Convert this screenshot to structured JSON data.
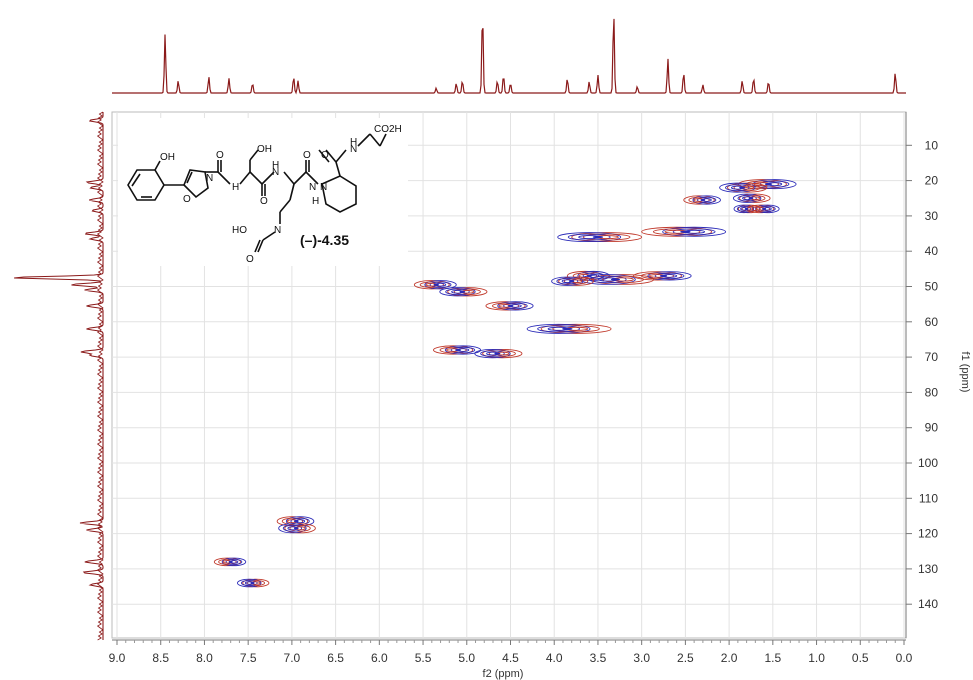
{
  "chart_data": {
    "type": "heatmap",
    "subtype": "2D HSQC NMR spectrum (1H-13C) with projections",
    "xlabel": "f2 (ppm)",
    "ylabel": "f1 (ppm)",
    "xlim": [
      9.0,
      0.0
    ],
    "ylim": [
      0,
      150
    ],
    "x_axis_reversed": true,
    "y_axis_direction": "increasing downward",
    "x_ticks": [
      "9.0",
      "8.5",
      "8.0",
      "7.5",
      "7.0",
      "6.5",
      "6.0",
      "5.5",
      "5.0",
      "4.5",
      "4.0",
      "3.5",
      "3.0",
      "2.5",
      "2.0",
      "1.5",
      "1.0",
      "0.5",
      "0.0"
    ],
    "y_ticks": [
      "10",
      "20",
      "30",
      "40",
      "50",
      "60",
      "70",
      "80",
      "90",
      "100",
      "110",
      "120",
      "130",
      "140"
    ],
    "grid": true,
    "annotation": "(–)-4.35",
    "contour_colors": {
      "positive": "#c0392b",
      "negative": "#2b2bb8"
    },
    "cross_peaks": [
      {
        "x": 1.55,
        "y": 21,
        "w": 0.55,
        "h": 2.0
      },
      {
        "x": 1.85,
        "y": 22,
        "w": 0.45,
        "h": 2.0
      },
      {
        "x": 2.3,
        "y": 25.5,
        "w": 0.35,
        "h": 1.8
      },
      {
        "x": 1.75,
        "y": 25,
        "w": 0.35,
        "h": 1.8
      },
      {
        "x": 1.6,
        "y": 28,
        "w": 0.3,
        "h": 1.6
      },
      {
        "x": 1.8,
        "y": 28,
        "w": 0.25,
        "h": 1.6
      },
      {
        "x": 2.5,
        "y": 34.5,
        "w": 0.8,
        "h": 2.0
      },
      {
        "x": 3.5,
        "y": 36,
        "w": 0.8,
        "h": 2.0
      },
      {
        "x": 3.6,
        "y": 47,
        "w": 0.4,
        "h": 2.0
      },
      {
        "x": 3.3,
        "y": 48,
        "w": 0.7,
        "h": 2.2
      },
      {
        "x": 2.75,
        "y": 47,
        "w": 0.55,
        "h": 1.8
      },
      {
        "x": 3.8,
        "y": 48.5,
        "w": 0.4,
        "h": 1.8
      },
      {
        "x": 5.35,
        "y": 49.5,
        "w": 0.4,
        "h": 1.8
      },
      {
        "x": 5.05,
        "y": 51.5,
        "w": 0.45,
        "h": 1.8
      },
      {
        "x": 4.5,
        "y": 55.5,
        "w": 0.45,
        "h": 1.8
      },
      {
        "x": 3.85,
        "y": 62,
        "w": 0.8,
        "h": 2.0
      },
      {
        "x": 5.1,
        "y": 68,
        "w": 0.45,
        "h": 1.8
      },
      {
        "x": 4.65,
        "y": 69,
        "w": 0.45,
        "h": 1.8
      },
      {
        "x": 6.95,
        "y": 116.5,
        "w": 0.35,
        "h": 2.0
      },
      {
        "x": 6.95,
        "y": 118.5,
        "w": 0.35,
        "h": 2.0
      },
      {
        "x": 7.7,
        "y": 128,
        "w": 0.3,
        "h": 1.6
      },
      {
        "x": 7.45,
        "y": 134,
        "w": 0.3,
        "h": 1.6
      }
    ],
    "projection_1H_peaks": [
      {
        "x": 8.45,
        "h": 0.72
      },
      {
        "x": 8.3,
        "h": 0.15
      },
      {
        "x": 7.95,
        "h": 0.2
      },
      {
        "x": 7.72,
        "h": 0.18
      },
      {
        "x": 7.45,
        "h": 0.12
      },
      {
        "x": 6.98,
        "h": 0.2
      },
      {
        "x": 6.93,
        "h": 0.15
      },
      {
        "x": 5.35,
        "h": 0.06
      },
      {
        "x": 5.12,
        "h": 0.12
      },
      {
        "x": 5.05,
        "h": 0.15
      },
      {
        "x": 4.82,
        "h": 1.0
      },
      {
        "x": 4.65,
        "h": 0.15
      },
      {
        "x": 4.58,
        "h": 0.22
      },
      {
        "x": 4.5,
        "h": 0.12
      },
      {
        "x": 3.85,
        "h": 0.18
      },
      {
        "x": 3.6,
        "h": 0.14
      },
      {
        "x": 3.5,
        "h": 0.22
      },
      {
        "x": 3.32,
        "h": 1.0
      },
      {
        "x": 3.05,
        "h": 0.08
      },
      {
        "x": 2.7,
        "h": 0.42
      },
      {
        "x": 2.52,
        "h": 0.25
      },
      {
        "x": 2.3,
        "h": 0.1
      },
      {
        "x": 1.85,
        "h": 0.15
      },
      {
        "x": 1.72,
        "h": 0.18
      },
      {
        "x": 1.55,
        "h": 0.14
      },
      {
        "x": 0.1,
        "h": 0.25
      }
    ],
    "projection_13C_peaks": [
      {
        "y": 3,
        "h": 0.15
      },
      {
        "y": 20.5,
        "h": 0.18
      },
      {
        "y": 22,
        "h": 0.14
      },
      {
        "y": 25.5,
        "h": 0.15
      },
      {
        "y": 28.5,
        "h": 0.12
      },
      {
        "y": 35,
        "h": 0.2
      },
      {
        "y": 36.5,
        "h": 0.14
      },
      {
        "y": 47.5,
        "h": 1.0
      },
      {
        "y": 49.5,
        "h": 0.35
      },
      {
        "y": 51,
        "h": 0.2
      },
      {
        "y": 55.5,
        "h": 0.18
      },
      {
        "y": 62,
        "h": 0.18
      },
      {
        "y": 68.5,
        "h": 0.24
      },
      {
        "y": 69.5,
        "h": 0.14
      },
      {
        "y": 117,
        "h": 0.25
      },
      {
        "y": 119,
        "h": 0.18
      },
      {
        "y": 128,
        "h": 0.2
      },
      {
        "y": 131,
        "h": 0.22
      },
      {
        "y": 134.5,
        "h": 0.14
      }
    ]
  },
  "structure": {
    "atom_labels": [
      "OH",
      "O",
      "N",
      "H",
      "O",
      "OH",
      "N",
      "H",
      "O",
      "N",
      "N",
      "H",
      "O",
      "N",
      "H",
      "CO2H",
      "O",
      "HO",
      "N",
      "O"
    ],
    "compound_label": "(–)-4.35"
  }
}
